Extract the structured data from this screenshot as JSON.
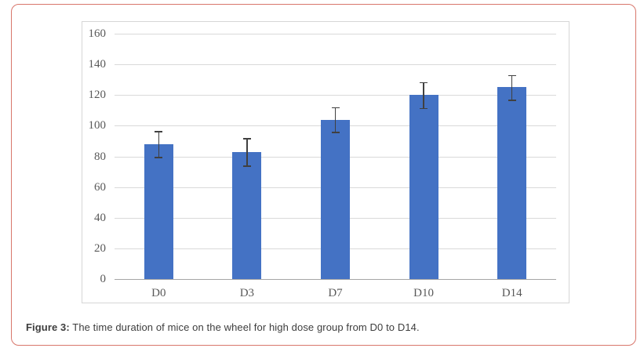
{
  "figure": {
    "caption_label": "Figure 3:",
    "caption_text": " The time duration of mice on the wheel for high dose group from D0 to D14."
  },
  "chart_data": {
    "type": "bar",
    "categories": [
      "D0",
      "D3",
      "D7",
      "D10",
      "D14"
    ],
    "values": [
      88,
      83,
      104,
      120,
      125
    ],
    "errors": [
      8.5,
      9,
      8,
      8.5,
      8
    ],
    "title": "",
    "xlabel": "",
    "ylabel": "",
    "ylim": [
      0,
      160
    ],
    "yticks": [
      0,
      20,
      40,
      60,
      80,
      100,
      120,
      140,
      160
    ],
    "grid": true,
    "legend": false,
    "bar_color": "#4472c4",
    "error_bar_color": "#404040",
    "gridline_color": "#d9d9d9",
    "axis_line_color": "#a6a6a6",
    "tick_label_color": "#595959",
    "frame_border_color": "#d8766b"
  }
}
